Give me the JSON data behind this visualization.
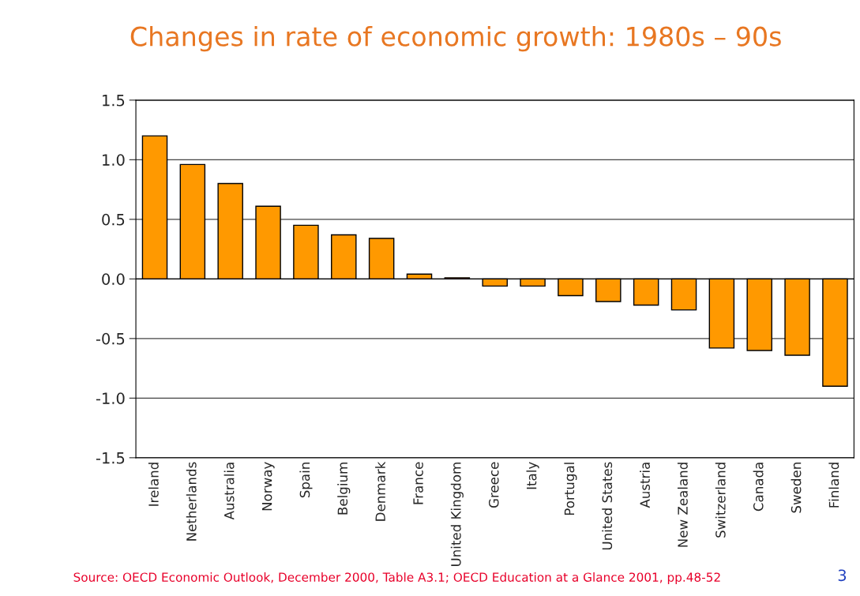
{
  "chart_data": {
    "type": "bar",
    "title": "Changes in rate of economic growth: 1980s – 90s",
    "categories": [
      "Ireland",
      "Netherlands",
      "Australia",
      "Norway",
      "Spain",
      "Belgium",
      "Denmark",
      "France",
      "United Kingdom",
      "Greece",
      "Italy",
      "Portugal",
      "United States",
      "Austria",
      "New Zealand",
      "Switzerland",
      "Canada",
      "Sweden",
      "Finland"
    ],
    "values": [
      1.2,
      0.96,
      0.8,
      0.61,
      0.45,
      0.37,
      0.34,
      0.04,
      0.01,
      -0.06,
      -0.06,
      -0.14,
      -0.19,
      -0.22,
      -0.26,
      -0.58,
      -0.6,
      -0.64,
      -0.9
    ],
    "color": "#ff9900",
    "ylim": [
      -1.5,
      1.5
    ],
    "yticks": [
      {
        "value": -1.5,
        "label": "-1.5"
      },
      {
        "value": -1.0,
        "label": "-1.0"
      },
      {
        "value": -0.5,
        "label": "-0.5"
      },
      {
        "value": 0.0,
        "label": "0.0"
      },
      {
        "value": 0.5,
        "label": "0.5"
      },
      {
        "value": 1.0,
        "label": "1.0"
      },
      {
        "value": 1.5,
        "label": "1.5"
      }
    ],
    "grid": "y",
    "annotations": [
      "Source: OECD Economic Outlook, December 2000, Table A3.1; OECD Education at a Glance 2001, pp.48-52",
      "3"
    ]
  }
}
